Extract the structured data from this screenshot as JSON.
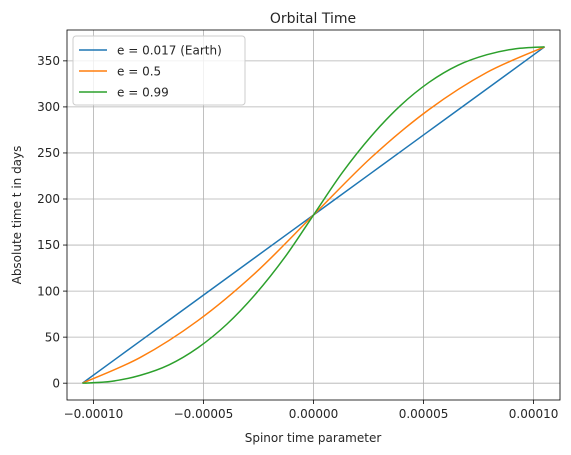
{
  "chart_data": {
    "type": "line",
    "title": "Orbital Time",
    "xlabel": "Spinor time parameter",
    "ylabel": "Absolute time t in days",
    "xlim": [
      -0.000112,
      0.000112
    ],
    "ylim": [
      -18.26,
      383.51
    ],
    "grid": true,
    "legend_position": "top-left",
    "x_ticks": [
      -0.0001,
      -5e-05,
      0,
      5e-05,
      0.0001
    ],
    "x_tick_labels": [
      "−0.00010",
      "−0.00005",
      "0.00000",
      "0.00005",
      "0.00010"
    ],
    "y_ticks": [
      0,
      50,
      100,
      150,
      200,
      250,
      300,
      350
    ],
    "y_tick_labels": [
      "0",
      "50",
      "100",
      "150",
      "200",
      "250",
      "300",
      "350"
    ],
    "series": [
      {
        "name": "e = 0.017 (Earth)",
        "color": "#1f77b4",
        "x": [
          -0.000105,
          -7.88e-05,
          -5.25e-05,
          -2.63e-05,
          0,
          2.63e-05,
          5.25e-05,
          7.88e-05,
          0.000105
        ],
        "y": [
          0,
          45.6,
          91.3,
          136.9,
          182.6,
          228.3,
          273.9,
          319.6,
          365.25
        ]
      },
      {
        "name": "e = 0.5",
        "color": "#ff7f0e",
        "x": [
          -0.000105,
          -7.88e-05,
          -5.25e-05,
          -2.63e-05,
          0,
          2.63e-05,
          5.25e-05,
          7.88e-05,
          0.000105
        ],
        "y": [
          0,
          27.8,
          68.0,
          120.0,
          182.6,
          245.2,
          297.2,
          337.5,
          365.25
        ]
      },
      {
        "name": "e = 0.99",
        "color": "#2ca02c",
        "x": [
          -0.000105,
          -9.19e-05,
          -7.88e-05,
          -6.56e-05,
          -5.25e-05,
          -3.94e-05,
          -2.63e-05,
          -1.31e-05,
          0,
          1.31e-05,
          2.63e-05,
          3.94e-05,
          5.25e-05,
          6.56e-05,
          7.88e-05,
          9.19e-05,
          0.000105
        ],
        "y": [
          0,
          2.0,
          8.5,
          20.0,
          38.5,
          64.0,
          96.8,
          136.5,
          182.6,
          228.7,
          268.4,
          301.2,
          326.7,
          345.2,
          356.7,
          363.2,
          365.25
        ]
      }
    ]
  }
}
